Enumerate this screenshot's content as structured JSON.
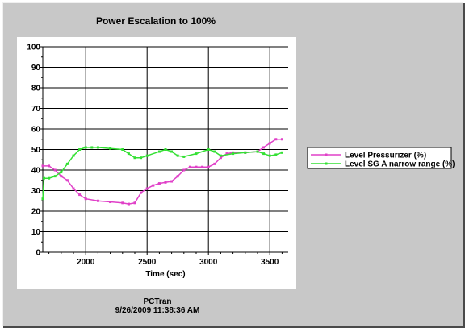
{
  "chart_data": {
    "type": "line",
    "title": "Power Escalation to 100%",
    "xlabel": "Time (sec)",
    "ylabel": "",
    "xlim": [
      1650,
      3650
    ],
    "ylim": [
      0,
      100
    ],
    "x_ticks": [
      2000,
      2500,
      3000,
      3500
    ],
    "y_ticks": [
      0,
      10,
      20,
      30,
      40,
      50,
      60,
      70,
      80,
      90,
      100
    ],
    "grid": true,
    "legend_position": "right",
    "series": [
      {
        "name": "Level Pressurizer (%)",
        "color": "#e040c8",
        "marker": "dot",
        "points": [
          [
            1650,
            42
          ],
          [
            1700,
            42
          ],
          [
            1750,
            40
          ],
          [
            1800,
            37
          ],
          [
            1850,
            35
          ],
          [
            1900,
            31
          ],
          [
            1950,
            28
          ],
          [
            2000,
            26
          ],
          [
            2100,
            25
          ],
          [
            2200,
            24.5
          ],
          [
            2300,
            24
          ],
          [
            2350,
            23.5
          ],
          [
            2400,
            24
          ],
          [
            2450,
            29
          ],
          [
            2500,
            31
          ],
          [
            2550,
            32.5
          ],
          [
            2600,
            33.5
          ],
          [
            2650,
            34
          ],
          [
            2700,
            34.5
          ],
          [
            2750,
            37
          ],
          [
            2800,
            40
          ],
          [
            2850,
            41.5
          ],
          [
            2900,
            41.5
          ],
          [
            2950,
            41.5
          ],
          [
            3000,
            41.5
          ],
          [
            3050,
            43
          ],
          [
            3100,
            46
          ],
          [
            3150,
            48
          ],
          [
            3200,
            48.5
          ],
          [
            3300,
            48.5
          ],
          [
            3400,
            49
          ],
          [
            3450,
            51
          ],
          [
            3500,
            53
          ],
          [
            3550,
            55
          ],
          [
            3600,
            55
          ]
        ]
      },
      {
        "name": "Level SG A narrow range (%)",
        "color": "#33e033",
        "marker": "dot",
        "points": [
          [
            1650,
            26
          ],
          [
            1660,
            36
          ],
          [
            1700,
            36
          ],
          [
            1750,
            37
          ],
          [
            1800,
            39
          ],
          [
            1850,
            43
          ],
          [
            1900,
            47
          ],
          [
            1950,
            50
          ],
          [
            2000,
            51
          ],
          [
            2050,
            51
          ],
          [
            2100,
            51
          ],
          [
            2200,
            50.5
          ],
          [
            2300,
            50
          ],
          [
            2350,
            48
          ],
          [
            2400,
            46
          ],
          [
            2450,
            46
          ],
          [
            2500,
            47
          ],
          [
            2600,
            49
          ],
          [
            2650,
            50
          ],
          [
            2700,
            49
          ],
          [
            2750,
            47
          ],
          [
            2800,
            46.5
          ],
          [
            2900,
            48
          ],
          [
            3000,
            50
          ],
          [
            3050,
            49
          ],
          [
            3100,
            47
          ],
          [
            3200,
            48
          ],
          [
            3300,
            48.5
          ],
          [
            3400,
            49
          ],
          [
            3450,
            48
          ],
          [
            3500,
            47
          ],
          [
            3550,
            47.5
          ],
          [
            3600,
            48.5
          ]
        ]
      }
    ],
    "footer": {
      "line1": "PCTran",
      "line2": "9/26/2009 11:38:36 AM"
    }
  }
}
